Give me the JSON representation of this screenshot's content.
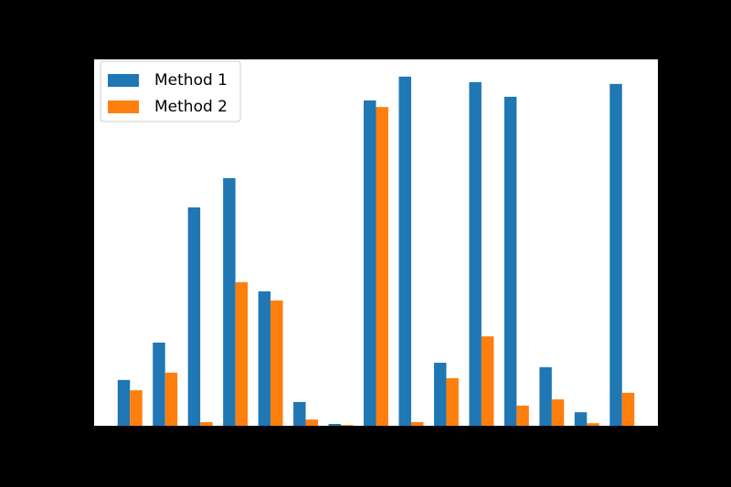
{
  "chart_data": {
    "type": "bar",
    "categories": [
      null,
      null,
      null,
      null,
      null,
      null,
      null,
      null,
      null,
      null,
      null,
      null,
      null,
      null,
      null
    ],
    "series": [
      {
        "name": "Method 1",
        "color": "#1f77b4",
        "values": [
          12.5,
          22.7,
          59.6,
          67.6,
          36.7,
          6.5,
          0.5,
          88.8,
          95.3,
          17.2,
          93.8,
          89.8,
          16.0,
          3.7,
          93.3
        ]
      },
      {
        "name": "Method 2",
        "color": "#ff7f0e",
        "values": [
          9.7,
          14.5,
          1.0,
          39.2,
          34.2,
          1.7,
          0.2,
          87.0,
          1.0,
          13.0,
          24.4,
          5.5,
          7.2,
          0.7,
          9.0
        ]
      }
    ],
    "ylim": [
      0,
      100
    ],
    "legend": "upper left"
  }
}
